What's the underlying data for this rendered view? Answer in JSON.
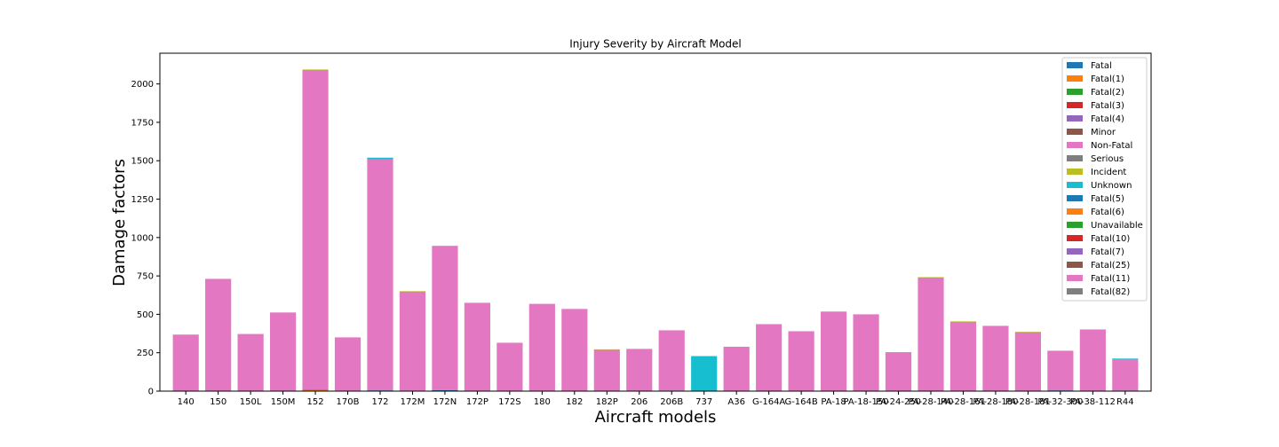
{
  "chart_data": {
    "type": "bar",
    "stacked": true,
    "title": "Injury Severity by Aircraft Model",
    "xlabel": "Aircraft models",
    "ylabel": "Damage factors",
    "ylim": [
      0,
      2200
    ],
    "yticks": [
      0,
      250,
      500,
      750,
      1000,
      1250,
      1500,
      1750,
      2000
    ],
    "grid": false,
    "legend_position": "top-right",
    "categories": [
      "140",
      "150",
      "150L",
      "150M",
      "152",
      "170B",
      "172",
      "172M",
      "172N",
      "172P",
      "172S",
      "180",
      "182",
      "182P",
      "206",
      "206B",
      "737",
      "A36",
      "G-164A",
      "G-164B",
      "PA-18",
      "PA-18-150",
      "PA-24-250",
      "PA-28-140",
      "PA-28-161",
      "PA-28-180",
      "PA-28-181",
      "PA-32-300",
      "PA-38-112",
      "R44"
    ],
    "series": [
      {
        "name": "Fatal",
        "color": "#1f77b4",
        "values": [
          0,
          3,
          0,
          0,
          3,
          0,
          5,
          0,
          6,
          0,
          3,
          0,
          3,
          0,
          0,
          4,
          0,
          0,
          0,
          0,
          0,
          0,
          0,
          0,
          0,
          0,
          0,
          5,
          0,
          4
        ]
      },
      {
        "name": "Fatal(1)",
        "color": "#ff7f0e",
        "values": [
          0,
          0,
          0,
          0,
          3,
          0,
          0,
          3,
          0,
          0,
          0,
          0,
          0,
          2,
          3,
          0,
          0,
          3,
          0,
          0,
          0,
          0,
          2,
          0,
          0,
          0,
          2,
          0,
          0,
          0
        ]
      },
      {
        "name": "Fatal(2)",
        "color": "#2ca02c",
        "values": [
          0,
          0,
          0,
          0,
          3,
          0,
          0,
          0,
          0,
          0,
          0,
          0,
          0,
          0,
          0,
          0,
          0,
          0,
          0,
          0,
          0,
          0,
          0,
          0,
          0,
          0,
          0,
          0,
          0,
          0
        ]
      },
      {
        "name": "Fatal(3)",
        "color": "#d62728",
        "values": [
          0,
          0,
          0,
          0,
          0,
          0,
          0,
          0,
          0,
          0,
          0,
          0,
          0,
          0,
          0,
          0,
          0,
          0,
          0,
          0,
          0,
          0,
          0,
          0,
          0,
          0,
          0,
          0,
          0,
          0
        ]
      },
      {
        "name": "Fatal(4)",
        "color": "#9467bd",
        "values": [
          0,
          0,
          0,
          0,
          0,
          0,
          0,
          0,
          0,
          0,
          0,
          0,
          0,
          0,
          0,
          0,
          0,
          0,
          0,
          0,
          0,
          0,
          0,
          0,
          0,
          0,
          0,
          0,
          0,
          0
        ]
      },
      {
        "name": "Minor",
        "color": "#8c564b",
        "values": [
          0,
          0,
          0,
          0,
          0,
          0,
          0,
          0,
          0,
          0,
          0,
          0,
          0,
          0,
          0,
          0,
          0,
          0,
          0,
          0,
          0,
          0,
          0,
          0,
          0,
          0,
          0,
          0,
          0,
          0
        ]
      },
      {
        "name": "Non-Fatal",
        "color": "#e377c2",
        "values": [
          368,
          728,
          372,
          512,
          2082,
          350,
          1503,
          645,
          940,
          575,
          312,
          568,
          532,
          268,
          272,
          392,
          0,
          286,
          436,
          390,
          518,
          500,
          250,
          740,
          452,
          425,
          382,
          258,
          400,
          200
        ]
      },
      {
        "name": "Serious",
        "color": "#7f7f7f",
        "values": [
          0,
          0,
          0,
          0,
          0,
          0,
          0,
          0,
          0,
          0,
          0,
          0,
          0,
          0,
          0,
          0,
          0,
          0,
          0,
          0,
          0,
          0,
          0,
          0,
          0,
          0,
          0,
          0,
          0,
          0
        ]
      },
      {
        "name": "Incident",
        "color": "#bcbd22",
        "values": [
          0,
          0,
          0,
          0,
          3,
          0,
          0,
          3,
          0,
          0,
          0,
          0,
          0,
          2,
          0,
          0,
          0,
          0,
          0,
          0,
          0,
          0,
          2,
          2,
          2,
          0,
          2,
          0,
          2,
          0
        ]
      },
      {
        "name": "Unknown",
        "color": "#17becf",
        "values": [
          0,
          0,
          0,
          0,
          0,
          0,
          12,
          0,
          0,
          0,
          0,
          0,
          0,
          0,
          0,
          0,
          228,
          0,
          0,
          0,
          0,
          0,
          0,
          0,
          0,
          0,
          0,
          0,
          0,
          8
        ]
      },
      {
        "name": "Fatal(5)",
        "color": "#1f77b4",
        "values": [
          0,
          0,
          0,
          0,
          0,
          0,
          0,
          0,
          0,
          0,
          0,
          0,
          0,
          0,
          0,
          0,
          0,
          0,
          0,
          0,
          0,
          0,
          0,
          0,
          0,
          0,
          0,
          0,
          0,
          0
        ]
      },
      {
        "name": "Fatal(6)",
        "color": "#ff7f0e",
        "values": [
          0,
          0,
          0,
          0,
          0,
          0,
          0,
          0,
          0,
          0,
          0,
          0,
          0,
          0,
          0,
          0,
          0,
          0,
          0,
          0,
          0,
          0,
          0,
          0,
          0,
          0,
          0,
          0,
          0,
          0
        ]
      },
      {
        "name": "Unavailable",
        "color": "#2ca02c",
        "values": [
          0,
          0,
          0,
          0,
          0,
          0,
          0,
          0,
          0,
          0,
          0,
          0,
          0,
          0,
          0,
          0,
          0,
          0,
          0,
          0,
          0,
          0,
          0,
          0,
          0,
          0,
          0,
          0,
          0,
          0
        ]
      },
      {
        "name": "Fatal(10)",
        "color": "#d62728",
        "values": [
          0,
          0,
          0,
          0,
          0,
          0,
          0,
          0,
          0,
          0,
          0,
          0,
          0,
          0,
          0,
          0,
          0,
          0,
          0,
          0,
          0,
          0,
          0,
          0,
          0,
          0,
          0,
          0,
          0,
          0
        ]
      },
      {
        "name": "Fatal(7)",
        "color": "#9467bd",
        "values": [
          0,
          0,
          0,
          0,
          0,
          0,
          0,
          0,
          0,
          0,
          0,
          0,
          0,
          0,
          0,
          0,
          0,
          0,
          0,
          0,
          0,
          0,
          0,
          0,
          0,
          0,
          0,
          0,
          0,
          0
        ]
      },
      {
        "name": "Fatal(25)",
        "color": "#8c564b",
        "values": [
          0,
          0,
          0,
          0,
          0,
          0,
          0,
          0,
          0,
          0,
          0,
          0,
          0,
          0,
          0,
          0,
          0,
          0,
          0,
          0,
          0,
          0,
          0,
          0,
          0,
          0,
          0,
          0,
          0,
          0
        ]
      },
      {
        "name": "Fatal(11)",
        "color": "#e377c2",
        "values": [
          0,
          0,
          0,
          0,
          0,
          0,
          0,
          0,
          0,
          0,
          0,
          0,
          0,
          0,
          0,
          0,
          0,
          0,
          0,
          0,
          0,
          0,
          0,
          0,
          0,
          0,
          0,
          0,
          0,
          0
        ]
      },
      {
        "name": "Fatal(82)",
        "color": "#7f7f7f",
        "values": [
          0,
          0,
          0,
          0,
          0,
          0,
          0,
          0,
          0,
          0,
          0,
          0,
          0,
          0,
          0,
          0,
          0,
          0,
          0,
          0,
          0,
          0,
          0,
          0,
          0,
          0,
          0,
          0,
          0,
          0
        ]
      }
    ]
  }
}
